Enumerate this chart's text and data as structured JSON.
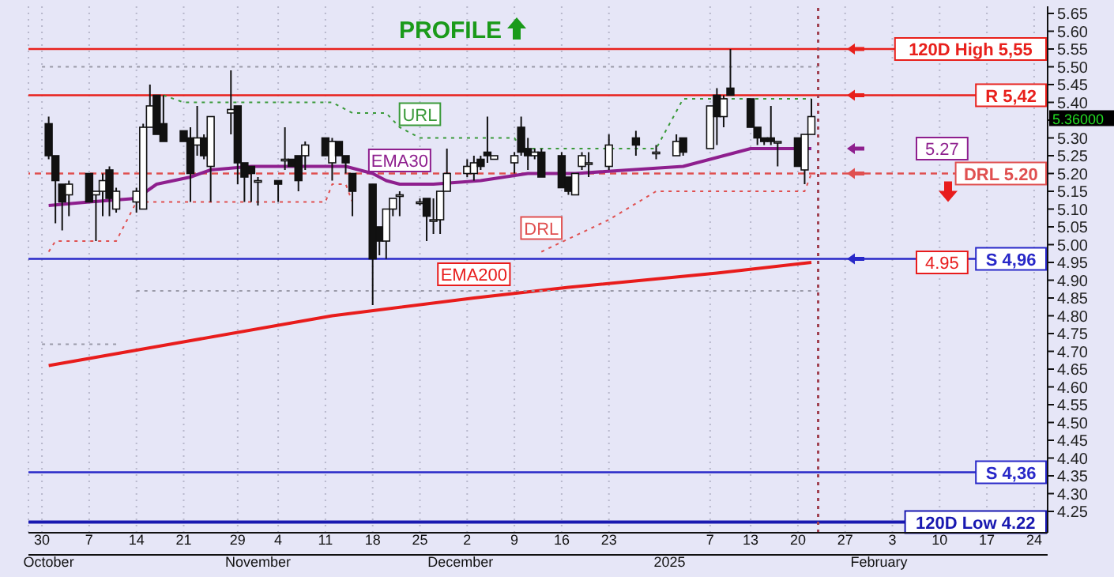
{
  "chart_data": {
    "type": "candlestick",
    "annotations": [
      "PROFILE",
      "5.36000",
      "5.27",
      "4.95"
    ],
    "x": [
      "2024-10-01",
      "2024-10-02",
      "2024-10-03",
      "2024-10-04",
      "2024-10-07",
      "2024-10-08",
      "2024-10-09",
      "2024-10-10",
      "2024-10-11",
      "2024-10-14",
      "2024-10-15",
      "2024-10-16",
      "2024-10-17",
      "2024-10-18",
      "2024-10-21",
      "2024-10-22",
      "2024-10-23",
      "2024-10-24",
      "2024-10-25",
      "2024-10-28",
      "2024-10-29",
      "2024-10-30",
      "2024-10-31",
      "2024-11-01",
      "2024-11-04",
      "2024-11-05",
      "2024-11-06",
      "2024-11-07",
      "2024-11-08",
      "2024-11-11",
      "2024-11-12",
      "2024-11-13",
      "2024-11-14",
      "2024-11-15",
      "2024-11-18",
      "2024-11-19",
      "2024-11-20",
      "2024-11-21",
      "2024-11-22",
      "2024-11-25",
      "2024-11-26",
      "2024-11-27",
      "2024-11-28",
      "2024-11-29",
      "2024-12-02",
      "2024-12-03",
      "2024-12-04",
      "2024-12-05",
      "2024-12-06",
      "2024-12-09",
      "2024-12-10",
      "2024-12-11",
      "2024-12-12",
      "2024-12-13",
      "2024-12-16",
      "2024-12-17",
      "2024-12-18",
      "2024-12-19",
      "2024-12-20",
      "2024-12-23",
      "2024-12-27",
      "2024-12-30",
      "2025-01-02",
      "2025-01-03",
      "2025-01-07",
      "2025-01-08",
      "2025-01-09",
      "2025-01-10",
      "2025-01-13",
      "2025-01-14",
      "2025-01-15",
      "2025-01-16",
      "2025-01-17",
      "2025-01-20",
      "2025-01-21",
      "2025-01-22"
    ],
    "ohlc": [
      [
        5.34,
        5.36,
        5.24,
        5.25
      ],
      [
        5.25,
        5.25,
        5.06,
        5.18
      ],
      [
        5.17,
        5.17,
        5.04,
        5.12
      ],
      [
        5.14,
        5.18,
        5.08,
        5.17
      ],
      [
        5.2,
        5.2,
        5.12,
        5.12
      ],
      [
        5.14,
        5.15,
        5.01,
        5.15
      ],
      [
        5.15,
        5.2,
        5.08,
        5.18
      ],
      [
        5.21,
        5.22,
        5.08,
        5.13
      ],
      [
        5.1,
        5.16,
        5.09,
        5.15
      ],
      [
        5.12,
        5.16,
        5.09,
        5.15
      ],
      [
        5.1,
        5.34,
        5.1,
        5.33
      ],
      [
        5.33,
        5.45,
        5.33,
        5.39
      ],
      [
        5.42,
        5.42,
        5.31,
        5.31
      ],
      [
        5.34,
        5.42,
        5.29,
        5.29
      ],
      [
        5.32,
        5.32,
        5.29,
        5.29
      ],
      [
        5.3,
        5.33,
        5.12,
        5.2
      ],
      [
        5.28,
        5.39,
        5.25,
        5.3
      ],
      [
        5.3,
        5.31,
        5.24,
        5.25
      ],
      [
        5.22,
        5.36,
        5.12,
        5.36
      ],
      [
        5.37,
        5.49,
        5.31,
        5.38
      ],
      [
        5.39,
        5.39,
        5.17,
        5.23
      ],
      [
        5.23,
        5.23,
        5.12,
        5.19
      ],
      [
        5.22,
        5.22,
        5.12,
        5.2
      ],
      [
        5.18,
        5.19,
        5.11,
        5.18
      ],
      [
        5.18,
        5.18,
        5.12,
        5.17
      ],
      [
        5.24,
        5.33,
        5.21,
        5.24
      ],
      [
        5.24,
        5.24,
        5.22,
        5.22
      ],
      [
        5.25,
        5.25,
        5.15,
        5.18
      ],
      [
        5.25,
        5.29,
        5.21,
        5.28
      ],
      [
        5.3,
        5.3,
        5.25,
        5.25
      ],
      [
        5.23,
        5.3,
        5.18,
        5.29
      ],
      [
        5.29,
        5.29,
        5.25,
        5.25
      ],
      [
        5.25,
        5.25,
        5.2,
        5.23
      ],
      [
        5.2,
        5.2,
        5.08,
        5.15
      ],
      [
        5.17,
        5.17,
        4.83,
        4.96
      ],
      [
        5.05,
        5.05,
        4.97,
        5.01
      ],
      [
        5.01,
        5.1,
        4.96,
        5.1
      ],
      [
        5.1,
        5.13,
        5.08,
        5.13
      ],
      [
        5.14,
        5.15,
        5.08,
        5.14
      ],
      [
        5.12,
        5.13,
        5.11,
        5.12
      ],
      [
        5.13,
        5.13,
        5.01,
        5.08
      ],
      [
        5.07,
        5.13,
        5.03,
        5.07
      ],
      [
        5.07,
        5.15,
        5.03,
        5.15
      ],
      [
        5.15,
        5.27,
        5.15,
        5.2
      ],
      [
        5.2,
        5.24,
        5.19,
        5.22
      ],
      [
        5.2,
        5.25,
        5.18,
        5.23
      ],
      [
        5.24,
        5.25,
        5.21,
        5.22
      ],
      [
        5.26,
        5.36,
        5.23,
        5.25
      ],
      [
        5.24,
        5.25,
        5.24,
        5.25
      ],
      [
        5.23,
        5.26,
        5.2,
        5.25
      ],
      [
        5.33,
        5.36,
        5.25,
        5.26
      ],
      [
        5.27,
        5.3,
        5.21,
        5.25
      ],
      [
        5.25,
        5.27,
        5.24,
        5.26
      ],
      [
        5.26,
        5.27,
        5.19,
        5.19
      ],
      [
        5.25,
        5.26,
        5.16,
        5.16
      ],
      [
        5.19,
        5.19,
        5.14,
        5.15
      ],
      [
        5.14,
        5.2,
        5.14,
        5.2
      ],
      [
        5.22,
        5.26,
        5.21,
        5.25
      ],
      [
        5.23,
        5.26,
        5.19,
        5.23
      ],
      [
        5.22,
        5.31,
        5.21,
        5.28
      ],
      [
        5.3,
        5.32,
        5.25,
        5.28
      ],
      [
        5.26,
        5.28,
        5.24,
        5.26
      ],
      [
        5.25,
        5.31,
        5.25,
        5.29
      ],
      [
        5.3,
        5.3,
        5.25,
        5.26
      ],
      [
        5.27,
        5.39,
        5.27,
        5.39
      ],
      [
        5.42,
        5.44,
        5.28,
        5.36
      ],
      [
        5.36,
        5.42,
        5.33,
        5.41
      ],
      [
        5.44,
        5.55,
        5.42,
        5.42
      ],
      [
        5.41,
        5.41,
        5.33,
        5.33
      ],
      [
        5.33,
        5.33,
        5.28,
        5.3
      ],
      [
        5.3,
        5.3,
        5.28,
        5.29
      ],
      [
        5.3,
        5.39,
        5.28,
        5.29
      ],
      [
        5.29,
        5.29,
        5.22,
        5.29
      ],
      [
        5.3,
        5.3,
        5.22,
        5.22
      ],
      [
        5.21,
        5.31,
        5.17,
        5.31
      ],
      [
        5.31,
        5.41,
        5.31,
        5.36
      ]
    ],
    "series": [
      {
        "type": "line",
        "name": "EMA30",
        "color": "#8e1f8e",
        "x": [
          "2024-10-01",
          "2024-10-07",
          "2024-10-14",
          "2024-10-17",
          "2024-10-22",
          "2024-10-25",
          "2024-10-31",
          "2024-11-07",
          "2024-11-14",
          "2024-11-18",
          "2024-11-20",
          "2024-11-22",
          "2024-11-27",
          "2024-12-04",
          "2024-12-11",
          "2024-12-18",
          "2025-01-03",
          "2025-01-09",
          "2025-01-13",
          "2025-01-22"
        ],
        "values": [
          5.11,
          5.12,
          5.13,
          5.17,
          5.19,
          5.21,
          5.22,
          5.22,
          5.22,
          5.2,
          5.18,
          5.17,
          5.17,
          5.18,
          5.2,
          5.2,
          5.22,
          5.25,
          5.27,
          5.27
        ]
      },
      {
        "type": "line",
        "name": "EMA200",
        "color": "#e81c1c",
        "x": [
          "2024-10-01",
          "2024-10-22",
          "2024-11-12",
          "2024-12-03",
          "2024-12-17",
          "2025-01-08",
          "2025-01-22"
        ],
        "values": [
          4.66,
          4.73,
          4.8,
          4.85,
          4.88,
          4.92,
          4.95
        ]
      },
      {
        "type": "line",
        "name": "URL",
        "color": "#3a9a3a",
        "line_style": "dotted",
        "x": [
          "2024-10-18",
          "2024-10-21",
          "2024-11-12",
          "2024-11-15",
          "2024-11-20",
          "2024-11-22",
          "2024-11-25",
          "2024-12-09",
          "2024-12-10",
          "2024-12-30",
          "2025-01-03",
          "2025-01-22"
        ],
        "values": [
          5.42,
          5.4,
          5.4,
          5.37,
          5.37,
          5.33,
          5.3,
          5.3,
          5.27,
          5.27,
          5.41,
          5.41
        ]
      },
      {
        "type": "line",
        "name": "DRL",
        "color": "#e05050",
        "line_style": "dotted",
        "x": [
          "2024-10-01",
          "2024-10-02",
          "2024-10-11",
          "2024-10-14",
          "2024-11-11",
          "2024-11-12",
          "2024-11-14",
          "2024-11-15",
          "2024-11-18",
          "2024-12-13",
          "2024-12-23",
          "2024-12-30",
          "2025-01-21",
          "2025-01-22"
        ],
        "values": [
          4.98,
          5.01,
          5.01,
          5.12,
          5.12,
          5.17,
          5.17,
          5.12,
          null,
          4.98,
          5.07,
          5.15,
          5.15,
          5.2
        ]
      },
      {
        "type": "line",
        "color": "#9a9aa8",
        "line_style": "dotted",
        "x": [
          "2024-09-30",
          "2025-01-23"
        ],
        "values": [
          5.5,
          5.5
        ]
      },
      {
        "type": "line",
        "color": "#9a9aa8",
        "line_style": "dotted",
        "x": [
          "2024-10-14",
          "2025-01-23"
        ],
        "values": [
          4.87,
          4.87
        ]
      },
      {
        "type": "line",
        "color": "#9a9aa8",
        "line_style": "dotted",
        "x": [
          "2024-09-30",
          "2024-10-11"
        ],
        "values": [
          4.72,
          4.72
        ]
      }
    ],
    "ref_lines": [
      {
        "axis": "y",
        "value": 5.55,
        "label": "120D High 5,55",
        "color": "#e8201c"
      },
      {
        "axis": "y",
        "value": 5.42,
        "label": "R 5,42",
        "color": "#e8201c"
      },
      {
        "axis": "y",
        "value": 5.2,
        "label": "DRL 5.20",
        "color": "#e05050",
        "line_style": "dashed"
      },
      {
        "axis": "y",
        "value": 4.96,
        "label": "S 4,96",
        "color": "#2828c8"
      },
      {
        "axis": "y",
        "value": 4.36,
        "label": "S 4,36",
        "color": "#2828c8"
      },
      {
        "axis": "y",
        "value": 4.22,
        "label": "120D Low 4.22",
        "color": "#1818b0"
      },
      {
        "axis": "x",
        "value": "2025-01-23",
        "color": "#a04050",
        "line_style": "dotted"
      }
    ],
    "xlim": [
      "2024-09-28",
      "2025-02-26"
    ],
    "xticks": [
      {
        "value": "2024-09-30",
        "label": "30"
      },
      {
        "value": "2024-10-07",
        "label": "7"
      },
      {
        "value": "2024-10-14",
        "label": "14"
      },
      {
        "value": "2024-10-21",
        "label": "21"
      },
      {
        "value": "2024-10-29",
        "label": "29"
      },
      {
        "value": "2024-11-04",
        "label": "4"
      },
      {
        "value": "2024-11-11",
        "label": "11"
      },
      {
        "value": "2024-11-18",
        "label": "18"
      },
      {
        "value": "2024-11-25",
        "label": "25"
      },
      {
        "value": "2024-12-02",
        "label": "2"
      },
      {
        "value": "2024-12-09",
        "label": "9"
      },
      {
        "value": "2024-12-16",
        "label": "16"
      },
      {
        "value": "2024-12-23",
        "label": "23"
      },
      {
        "value": "2025-01-07",
        "label": "7"
      },
      {
        "value": "2025-01-13",
        "label": "13"
      },
      {
        "value": "2025-01-20",
        "label": "20"
      },
      {
        "value": "2025-01-27",
        "label": "27"
      },
      {
        "value": "2025-02-03",
        "label": "3"
      },
      {
        "value": "2025-02-10",
        "label": "10"
      },
      {
        "value": "2025-02-17",
        "label": "17"
      },
      {
        "value": "2025-02-24",
        "label": "24"
      }
    ],
    "x2lim": [
      "2024-09-28",
      "2025-02-26"
    ],
    "x2ticks": [
      {
        "value": "2024-10-01",
        "label": "October"
      },
      {
        "value": "2024-11-01",
        "label": "November"
      },
      {
        "value": "2024-12-01",
        "label": "December"
      },
      {
        "value": "2025-01-01",
        "label": "2025"
      },
      {
        "value": "2025-02-01",
        "label": "February"
      }
    ],
    "ylim": [
      4.19,
      5.67
    ],
    "yticks": [
      {
        "value": 4.25,
        "label": "4.25"
      },
      {
        "value": 4.3,
        "label": "4.30"
      },
      {
        "value": 4.35,
        "label": "4.35"
      },
      {
        "value": 4.4,
        "label": "4.40"
      },
      {
        "value": 4.45,
        "label": "4.45"
      },
      {
        "value": 4.5,
        "label": "4.50"
      },
      {
        "value": 4.55,
        "label": "4.55"
      },
      {
        "value": 4.6,
        "label": "4.60"
      },
      {
        "value": 4.65,
        "label": "4.65"
      },
      {
        "value": 4.7,
        "label": "4.70"
      },
      {
        "value": 4.75,
        "label": "4.75"
      },
      {
        "value": 4.8,
        "label": "4.80"
      },
      {
        "value": 4.85,
        "label": "4.85"
      },
      {
        "value": 4.9,
        "label": "4.90"
      },
      {
        "value": 4.95,
        "label": "4.95"
      },
      {
        "value": 5.0,
        "label": "5.00"
      },
      {
        "value": 5.05,
        "label": "5.05"
      },
      {
        "value": 5.1,
        "label": "5.10"
      },
      {
        "value": 5.15,
        "label": "5.15"
      },
      {
        "value": 5.2,
        "label": "5.20"
      },
      {
        "value": 5.25,
        "label": "5.25"
      },
      {
        "value": 5.3,
        "label": "5.30"
      },
      {
        "value": 5.35,
        "label": null
      },
      {
        "value": 5.4,
        "label": "5.40"
      },
      {
        "value": 5.45,
        "label": "5.45"
      },
      {
        "value": 5.5,
        "label": "5.50"
      },
      {
        "value": 5.55,
        "label": "5.55"
      },
      {
        "value": 5.6,
        "label": "5.60"
      },
      {
        "value": 5.65,
        "label": "5.65"
      }
    ],
    "grid": "x"
  }
}
